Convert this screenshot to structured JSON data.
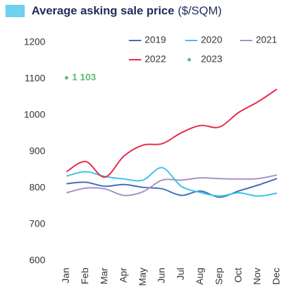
{
  "chart_data": {
    "type": "line",
    "title": "Average asking sale price",
    "title_unit": "($/SQM)",
    "categories": [
      "Jan",
      "Feb",
      "Mar",
      "Apr",
      "May",
      "Jun",
      "Jul",
      "Aug",
      "Sep",
      "Oct",
      "Nov",
      "Dec"
    ],
    "series": [
      {
        "name": "2019",
        "color": "#3d6fb8",
        "values": [
          812,
          816,
          805,
          810,
          802,
          798,
          780,
          792,
          775,
          792,
          808,
          826
        ]
      },
      {
        "name": "2020",
        "color": "#3cc3ea",
        "values": [
          833,
          845,
          832,
          825,
          822,
          856,
          805,
          788,
          778,
          787,
          778,
          786
        ]
      },
      {
        "name": "2021",
        "color": "#a78fc8",
        "values": [
          787,
          800,
          798,
          780,
          790,
          822,
          822,
          828,
          826,
          825,
          826,
          836
        ]
      },
      {
        "name": "2022",
        "color": "#e8284c",
        "values": [
          845,
          873,
          830,
          888,
          918,
          922,
          952,
          972,
          968,
          1008,
          1037,
          1072
        ]
      },
      {
        "name": "2023",
        "color": "#5dbb7a",
        "values": [
          1103,
          null,
          null,
          null,
          null,
          null,
          null,
          null,
          null,
          null,
          null,
          null
        ],
        "value_labels": [
          "1 103",
          null,
          null,
          null,
          null,
          null,
          null,
          null,
          null,
          null,
          null,
          null
        ]
      }
    ],
    "ylim": [
      600,
      1200
    ],
    "yticks": [
      600,
      700,
      800,
      900,
      1000,
      1100,
      1200
    ]
  }
}
